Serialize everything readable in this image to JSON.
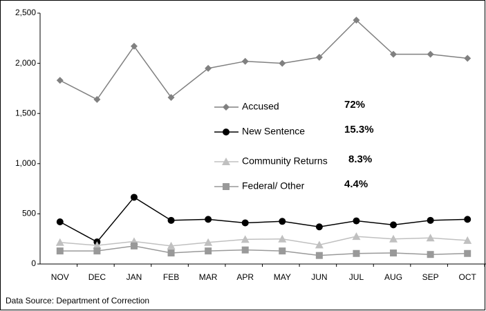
{
  "chart_data": {
    "type": "line",
    "categories": [
      "NOV",
      "DEC",
      "JAN",
      "FEB",
      "MAR",
      "APR",
      "MAY",
      "JUN",
      "JUL",
      "AUG",
      "SEP",
      "OCT"
    ],
    "series": [
      {
        "name": "Accused",
        "color": "#808080",
        "marker": "diamond",
        "share": "72%",
        "values": [
          1830,
          1640,
          2170,
          1660,
          1950,
          2020,
          2000,
          2060,
          2430,
          2090,
          2090,
          2050
        ]
      },
      {
        "name": "New Sentence",
        "color": "#000000",
        "marker": "circle",
        "share": "15.3%",
        "values": [
          420,
          220,
          665,
          435,
          445,
          410,
          425,
          370,
          430,
          390,
          435,
          445
        ]
      },
      {
        "name": "Community Returns",
        "color": "#c0c0c0",
        "marker": "triangle",
        "share": "8.3%",
        "values": [
          215,
          185,
          225,
          180,
          215,
          245,
          250,
          190,
          275,
          250,
          260,
          235
        ]
      },
      {
        "name": "Federal/ Other",
        "color": "#999999",
        "marker": "square",
        "share": "4.4%",
        "values": [
          130,
          130,
          180,
          110,
          130,
          140,
          130,
          85,
          105,
          110,
          95,
          105
        ]
      }
    ],
    "ylim": [
      0,
      2500
    ],
    "yticks": [
      0,
      {
        "value": 500,
        "label": "500"
      },
      {
        "value": 1000,
        "label": "1,000"
      },
      {
        "value": 1500,
        "label": "1,500"
      },
      {
        "value": 2000,
        "label": "2,000"
      },
      {
        "value": 2500,
        "label": "2,500"
      }
    ],
    "source": "Data Source: Department of Correction"
  }
}
